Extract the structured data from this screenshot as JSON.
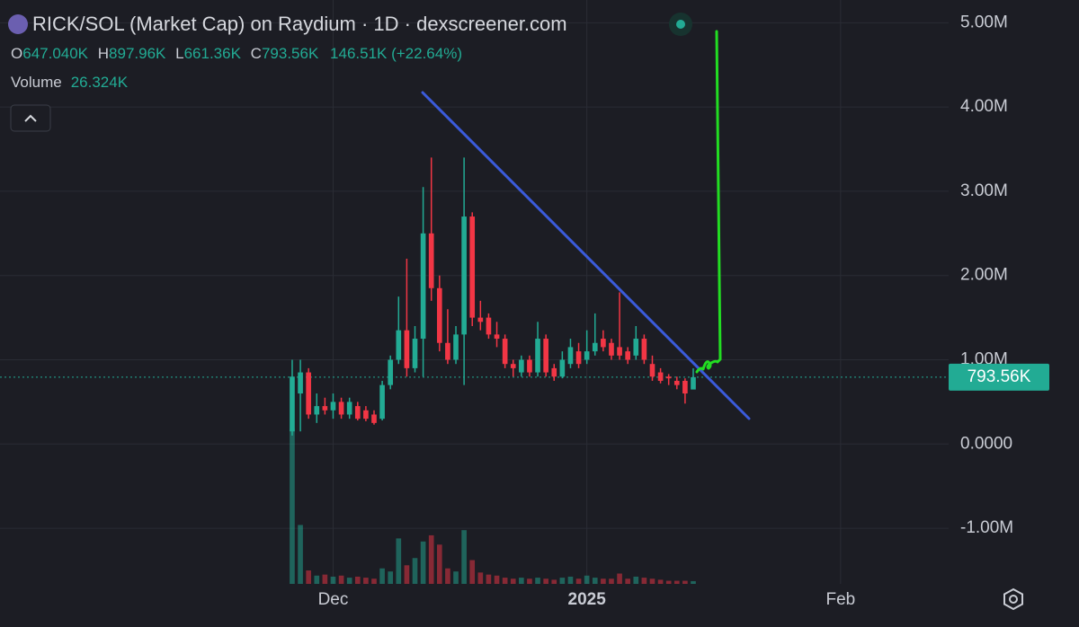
{
  "chart_data": {
    "type": "candlestick",
    "title": "RICK/SOL (Market Cap) on Raydium · 1D · dexscreener.com",
    "legend": {
      "open_label": "O",
      "open": "647.040K",
      "high_label": "H",
      "high": "897.96K",
      "low_label": "L",
      "low": "661.36K",
      "close_label": "C",
      "close": "793.56K",
      "change": "146.51K (+22.64%)",
      "volume_label": "Volume",
      "volume": "26.324K"
    },
    "up_color": "#22ab94",
    "down_color": "#f23645",
    "x": [
      0,
      1,
      2,
      3,
      4,
      5,
      6,
      7,
      8,
      9,
      10,
      11,
      12,
      13,
      14,
      15,
      16,
      17,
      18,
      19,
      20,
      21,
      22,
      23,
      24,
      25,
      26,
      27,
      28,
      29,
      30,
      31,
      32,
      33,
      34,
      35,
      36,
      37,
      38,
      39,
      40,
      41,
      42,
      43,
      44,
      45,
      46,
      47,
      48,
      49
    ],
    "open": [
      150000,
      600000,
      850000,
      350000,
      450000,
      400000,
      500000,
      350000,
      450000,
      400000,
      350000,
      300000,
      700000,
      1000000,
      1350000,
      900000,
      1250000,
      2500000,
      1850000,
      1200000,
      1000000,
      1300000,
      2700000,
      1500000,
      1500000,
      1300000,
      1250000,
      950000,
      850000,
      1000000,
      850000,
      1250000,
      900000,
      800000,
      950000,
      1100000,
      1000000,
      1100000,
      1250000,
      1200000,
      1150000,
      1100000,
      1050000,
      1250000,
      950000,
      850000,
      800000,
      750000,
      750000,
      647040
    ],
    "high": [
      1000000,
      1000000,
      900000,
      600000,
      550000,
      600000,
      550000,
      550000,
      500000,
      450000,
      400000,
      750000,
      1050000,
      1750000,
      2200000,
      1400000,
      3050000,
      3400000,
      2000000,
      1600000,
      1400000,
      3400000,
      2750000,
      1700000,
      1550000,
      1450000,
      1300000,
      1000000,
      1050000,
      1050000,
      1450000,
      1300000,
      950000,
      1100000,
      1250000,
      1200000,
      1350000,
      1550000,
      1350000,
      1250000,
      1800000,
      1150000,
      1400000,
      1300000,
      1050000,
      900000,
      830000,
      800000,
      780000,
      897960
    ],
    "low": [
      100000,
      150000,
      300000,
      250000,
      350000,
      300000,
      300000,
      300000,
      280000,
      270000,
      230000,
      280000,
      650000,
      950000,
      800000,
      850000,
      800000,
      1700000,
      1100000,
      950000,
      950000,
      700000,
      1400000,
      1350000,
      1250000,
      1150000,
      900000,
      800000,
      800000,
      800000,
      800000,
      800000,
      750000,
      780000,
      900000,
      900000,
      950000,
      1050000,
      1100000,
      1000000,
      1000000,
      950000,
      1000000,
      950000,
      750000,
      720000,
      700000,
      650000,
      480000,
      661360
    ],
    "close": [
      800000,
      850000,
      350000,
      450000,
      400000,
      500000,
      350000,
      500000,
      300000,
      300000,
      250000,
      700000,
      1000000,
      1350000,
      900000,
      1250000,
      2500000,
      1850000,
      1200000,
      1000000,
      1300000,
      2700000,
      1500000,
      1450000,
      1300000,
      1250000,
      950000,
      900000,
      1000000,
      850000,
      1250000,
      850000,
      800000,
      1000000,
      1150000,
      950000,
      1100000,
      1200000,
      1150000,
      1050000,
      1050000,
      1000000,
      1250000,
      1000000,
      800000,
      750000,
      780000,
      700000,
      600000,
      793560
    ],
    "volume": [
      1500000,
      570000,
      130000,
      80000,
      90000,
      70000,
      80000,
      60000,
      70000,
      60000,
      50000,
      150000,
      120000,
      440000,
      180000,
      250000,
      410000,
      470000,
      380000,
      150000,
      120000,
      520000,
      230000,
      110000,
      90000,
      80000,
      60000,
      50000,
      60000,
      50000,
      60000,
      50000,
      40000,
      60000,
      70000,
      50000,
      80000,
      60000,
      50000,
      50000,
      100000,
      50000,
      70000,
      60000,
      50000,
      40000,
      30000,
      30000,
      30000,
      26324
    ],
    "volume_lim": [
      0,
      5650000
    ],
    "xlim": [
      -35.7,
      80.2
    ],
    "xticks": [
      {
        "value": 5,
        "label": "Dec"
      },
      {
        "value": 36,
        "label": "2025"
      },
      {
        "value": 67,
        "label": "Feb"
      }
    ],
    "ylim": [
      -1660000,
      5270000
    ],
    "yticks": [
      {
        "value": 5000000,
        "label": "5.00M"
      },
      {
        "value": 4000000,
        "label": "4.00M"
      },
      {
        "value": 3000000,
        "label": "3.00M"
      },
      {
        "value": 2000000,
        "label": "2.00M"
      },
      {
        "value": 1000000,
        "label": "1.00M"
      },
      {
        "value": 0,
        "label": "0.0000"
      },
      {
        "value": -1000000,
        "label": "-1.00M"
      }
    ],
    "last_price": {
      "value": 793560,
      "label": "793.56K"
    },
    "grid": true
  }
}
